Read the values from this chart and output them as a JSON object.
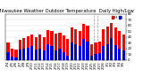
{
  "title": "Milwaukee Weather Outdoor Temperature",
  "subtitle": "Daily High/Low",
  "background_color": "#ffffff",
  "categories": [
    "2/4",
    "2/5",
    "2/6",
    "2/7",
    "2/8",
    "2/9",
    "2/10",
    "2/11",
    "2/12",
    "2/13",
    "2/14",
    "2/15",
    "2/16",
    "2/17",
    "2/18",
    "2/19",
    "2/20",
    "2/21",
    "2/22",
    "2/23",
    "2/24",
    "2/25",
    "2/26",
    "2/27",
    "2/28",
    "3/1",
    "3/2",
    "3/3",
    "3/4",
    "3/5"
  ],
  "highs": [
    30,
    20,
    18,
    35,
    38,
    41,
    44,
    40,
    44,
    40,
    52,
    50,
    46,
    48,
    42,
    36,
    56,
    54,
    50,
    62,
    60,
    28,
    30,
    32,
    54,
    58,
    64,
    56,
    50,
    44
  ],
  "lows": [
    14,
    6,
    4,
    18,
    20,
    22,
    24,
    18,
    20,
    16,
    28,
    24,
    16,
    20,
    14,
    8,
    30,
    28,
    24,
    36,
    32,
    8,
    10,
    12,
    24,
    28,
    38,
    26,
    20,
    16
  ],
  "high_color": "#ff0000",
  "low_color": "#0000dd",
  "ylim_min": 0,
  "ylim_max": 80,
  "yticks": [
    0,
    10,
    20,
    30,
    40,
    50,
    60,
    70,
    80
  ],
  "dashed_vlines_x": [
    21.5,
    22.5
  ],
  "title_fontsize": 3.8,
  "tick_fontsize": 2.8,
  "legend_fontsize": 3.2
}
